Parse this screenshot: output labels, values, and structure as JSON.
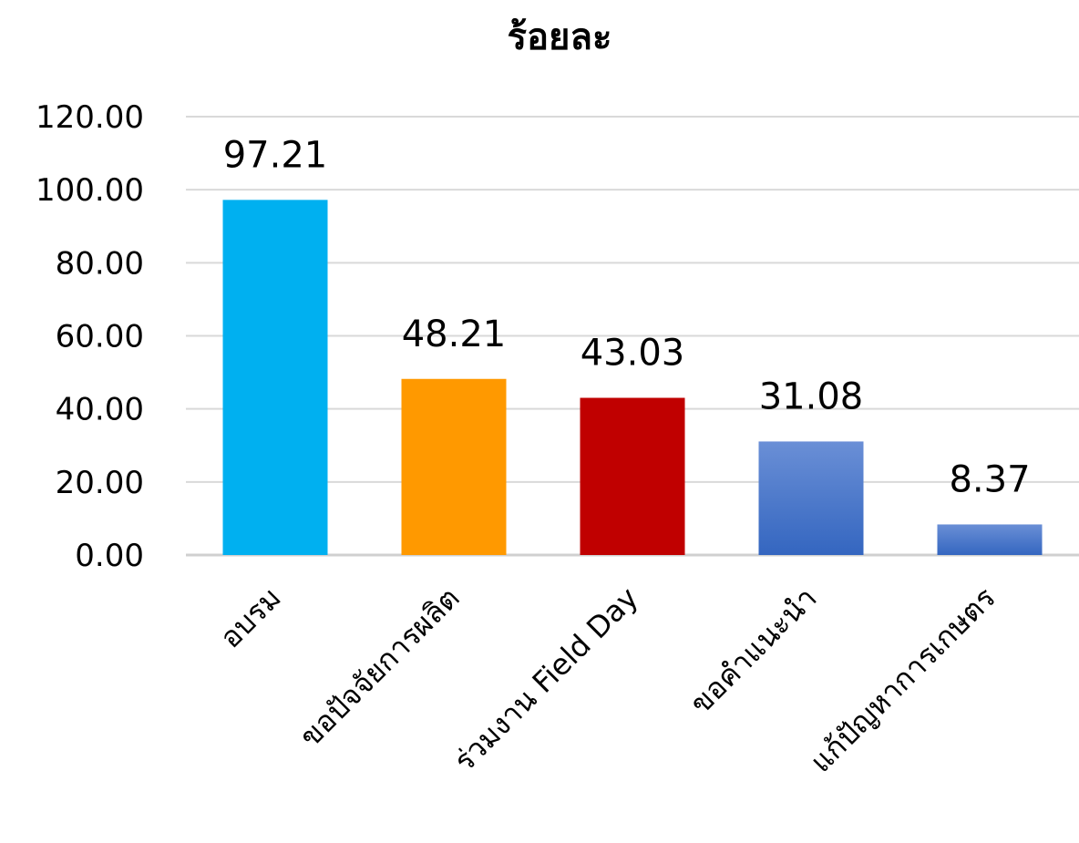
{
  "chart_data": {
    "type": "bar",
    "title": "ร้อยละ",
    "categories": [
      "อบรม",
      "ขอปัจจัยการผลิต",
      "ร่วมงาน Field Day",
      "ขอคำแนะนำ",
      "แก้ปัญหาการเกษตร"
    ],
    "values": [
      97.21,
      48.21,
      43.03,
      31.08,
      8.37
    ],
    "value_labels": [
      "97.21",
      "48.21",
      "43.03",
      "31.08",
      "8.37"
    ],
    "colors": [
      "#00b0f0",
      "#ff9900",
      "#c00000",
      "#4472c4",
      "#4472c4"
    ],
    "ylim": [
      0,
      120
    ],
    "yticks": [
      0,
      20,
      40,
      60,
      80,
      100,
      120
    ],
    "ytick_labels": [
      "0.00",
      "20.00",
      "40.00",
      "60.00",
      "80.00",
      "100.00",
      "120.00"
    ],
    "grid": true,
    "legend": "none",
    "xlabel": "",
    "ylabel": ""
  }
}
